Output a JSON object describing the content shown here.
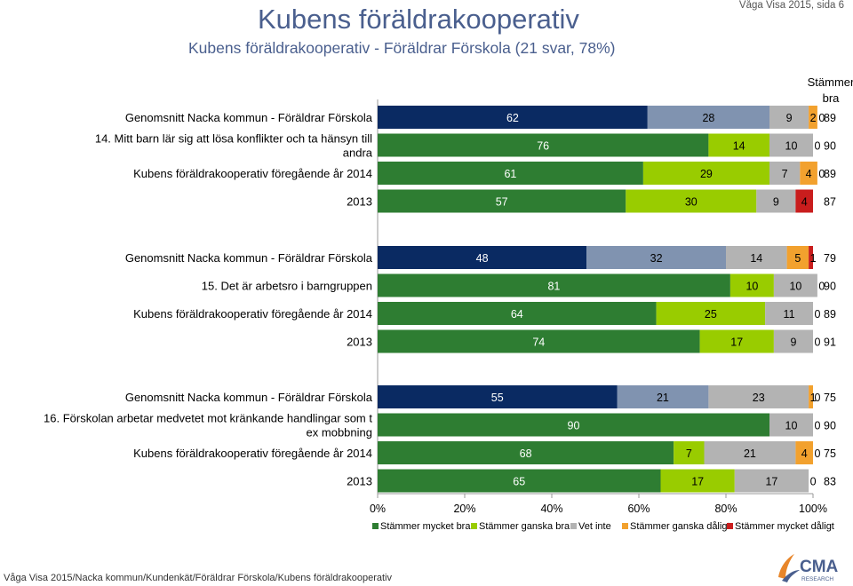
{
  "header": {
    "title": "Kubens föräldrakooperativ",
    "subtitle": "Kubens föräldrakooperativ - Föräldrar Förskola (21 svar, 78%)",
    "page_ref": "Våga Visa 2015, sida 6"
  },
  "column_header": {
    "line1": "Stämmer",
    "line2": "bra"
  },
  "footer": {
    "path": "Våga Visa 2015/Nacka kommun/Kundenkät/Föräldrar Förskola/Kubens föräldrakooperativ"
  },
  "logo": {
    "text": "CMA",
    "subtext": "RESEARCH"
  },
  "colors": {
    "navy": "#0a2a62",
    "bluegrey": "#8093b0",
    "grey": "#b3b3b3",
    "orange": "#f2a12e",
    "red": "#c91d1d",
    "darkgreen": "#2e7d32",
    "lightgreen": "#99cc00"
  },
  "chart_data": {
    "type": "bar",
    "orientation": "horizontal",
    "stacked": true,
    "xlim": [
      0,
      100
    ],
    "x_ticks": [
      "0%",
      "20%",
      "40%",
      "60%",
      "80%",
      "100%"
    ],
    "legend": [
      "Stämmer mycket bra",
      "Stämmer ganska bra",
      "Vet inte",
      "Stämmer ganska dåligt",
      "Stämmer mycket dåligt"
    ],
    "legend_position": "bottom",
    "right_column_title": "Stämmer bra",
    "groups": [
      {
        "rows": [
          {
            "label": "Genomsnitt Nacka kommun - Föräldrar Förskola",
            "palette": "benchmark",
            "values": [
              62,
              28,
              9,
              2,
              0
            ],
            "labels": [
              "62",
              "28",
              "9",
              "2",
              "0"
            ],
            "score": "89"
          },
          {
            "label": "14. Mitt barn lär sig att lösa konflikter och ta hänsyn till andra",
            "palette": "unit",
            "values": [
              76,
              14,
              10,
              0,
              0
            ],
            "labels": [
              "76",
              "14",
              "10",
              "0",
              ""
            ],
            "score": "90"
          },
          {
            "label": "Kubens föräldrakooperativ föregående år 2014",
            "palette": "unit",
            "values": [
              61,
              29,
              7,
              4,
              0
            ],
            "labels": [
              "61",
              "29",
              "7",
              "4",
              "0"
            ],
            "score": "89"
          },
          {
            "label": "2013",
            "palette": "unit",
            "values": [
              57,
              30,
              9,
              0,
              4
            ],
            "labels": [
              "57",
              "30",
              "9",
              "0",
              "4"
            ],
            "score": "87"
          }
        ]
      },
      {
        "rows": [
          {
            "label": "Genomsnitt Nacka kommun - Föräldrar Förskola",
            "palette": "benchmark",
            "values": [
              48,
              32,
              14,
              5,
              1
            ],
            "labels": [
              "48",
              "32",
              "14",
              "5",
              "1"
            ],
            "score": "79"
          },
          {
            "label": "15. Det är arbetsro i barngruppen",
            "palette": "unit",
            "values": [
              81,
              10,
              10,
              0,
              0
            ],
            "labels": [
              "81",
              "10",
              "10",
              "0",
              ""
            ],
            "score": "90"
          },
          {
            "label": "Kubens föräldrakooperativ föregående år 2014",
            "palette": "unit",
            "values": [
              64,
              25,
              11,
              0,
              0
            ],
            "labels": [
              "64",
              "25",
              "11",
              "0",
              ""
            ],
            "score": "89"
          },
          {
            "label": "2013",
            "palette": "unit",
            "values": [
              74,
              17,
              9,
              0,
              0
            ],
            "labels": [
              "74",
              "17",
              "9",
              "0",
              ""
            ],
            "score": "91"
          }
        ]
      },
      {
        "rows": [
          {
            "label": "Genomsnitt Nacka kommun - Föräldrar Förskola",
            "palette": "benchmark",
            "values": [
              55,
              21,
              23,
              1,
              0
            ],
            "labels": [
              "55",
              "21",
              "23",
              "1",
              "0"
            ],
            "score": "75"
          },
          {
            "label": "16. Förskolan arbetar medvetet mot kränkande handlingar som t ex mobbning",
            "palette": "unit",
            "values": [
              90,
              0,
              10,
              0,
              0
            ],
            "labels": [
              "90",
              "0",
              "10",
              "0",
              ""
            ],
            "score": "90"
          },
          {
            "label": "Kubens föräldrakooperativ föregående år 2014",
            "palette": "unit",
            "values": [
              68,
              7,
              21,
              4,
              0
            ],
            "labels": [
              "68",
              "7",
              "21",
              "4",
              "0"
            ],
            "score": "75"
          },
          {
            "label": "2013",
            "palette": "unit",
            "values": [
              65,
              17,
              17,
              0,
              0
            ],
            "labels": [
              "65",
              "17",
              "17",
              "0",
              ""
            ],
            "score": "83"
          }
        ]
      }
    ]
  }
}
